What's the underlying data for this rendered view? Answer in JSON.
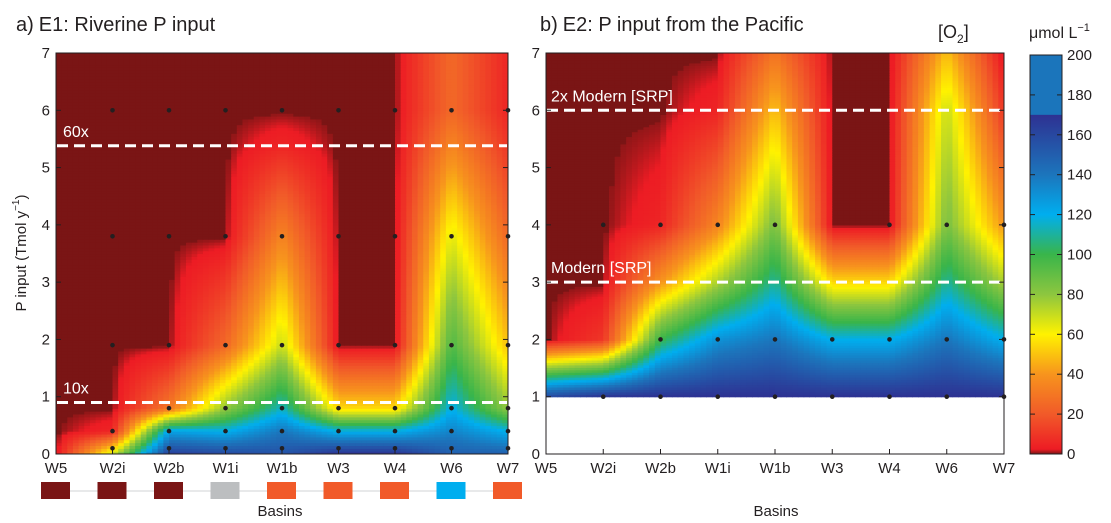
{
  "chart_data": [
    {
      "type": "heatmap",
      "panel": "a)",
      "title": "E1: Riverine P input",
      "ylabel_main": "P input (Tmol y",
      "ylabel_sup": "−1",
      "ylabel_close": ")",
      "xlabel": "Basins",
      "ylim": [
        0,
        7
      ],
      "yticks": [
        "0",
        "1",
        "2",
        "3",
        "4",
        "5",
        "6",
        "7"
      ],
      "categories": [
        "W5",
        "W2i",
        "W2b",
        "W1i",
        "W1b",
        "W3",
        "W4",
        "W6",
        "W7"
      ],
      "oxygen_by_p_input": {
        "p_levels": [
          0,
          0.4,
          0.8,
          1.9,
          3.8,
          5.4,
          6.0
        ],
        "W5": [
          0,
          0,
          0,
          0,
          0,
          0,
          0
        ],
        "W2i": [
          70,
          5,
          0,
          0,
          0,
          0,
          0
        ],
        "W2b": [
          165,
          125,
          30,
          0,
          0,
          0,
          0
        ],
        "W1i": [
          160,
          120,
          80,
          25,
          0,
          0,
          0
        ],
        "W1b": [
          155,
          140,
          115,
          70,
          35,
          5,
          0
        ],
        "W3": [
          170,
          120,
          55,
          0,
          0,
          0,
          0
        ],
        "W4": [
          170,
          120,
          55,
          0,
          0,
          0,
          0
        ],
        "W6": [
          150,
          135,
          120,
          95,
          65,
          35,
          25
        ],
        "W7": [
          150,
          120,
          80,
          50,
          25,
          10,
          5
        ]
      },
      "sample_points_p": {
        "W5": [],
        "W2i": [
          0.1,
          0.4,
          1.9,
          3.8,
          6.0
        ],
        "W2b": [
          0.1,
          0.4,
          0.8,
          1.9,
          3.8,
          6.0
        ],
        "W1i": [
          0.1,
          0.4,
          0.8,
          1.9,
          3.8,
          6.0
        ],
        "W1b": [
          0.1,
          0.4,
          0.8,
          1.9,
          3.8,
          6.0
        ],
        "W3": [
          0.1,
          0.4,
          0.8,
          1.9,
          3.8,
          6.0
        ],
        "W4": [
          0.1,
          0.4,
          0.8,
          1.9,
          3.8,
          6.0
        ],
        "W6": [
          0.1,
          0.4,
          0.8,
          1.9,
          3.8,
          6.0
        ],
        "W7": [
          0.1,
          0.4,
          0.8,
          1.9,
          3.8,
          6.0
        ]
      },
      "reference_lines": [
        {
          "label": "60x",
          "p": 5.38
        },
        {
          "label": "10x",
          "p": 0.9
        }
      ],
      "basin_colors": [
        "#7a1515",
        "#7a1515",
        "#7a1515",
        "#bcbec0",
        "#f15a29",
        "#f15a29",
        "#f15a29",
        "#00aeef",
        "#f15a29"
      ]
    },
    {
      "type": "heatmap",
      "panel": "b)",
      "title": "E2:  P input from the Pacific",
      "xlabel": "Basins",
      "ylim": [
        0,
        7
      ],
      "yticks": [
        "0",
        "1",
        "2",
        "3",
        "4",
        "5",
        "6",
        "7"
      ],
      "categories": [
        "W5",
        "W2i",
        "W2b",
        "W1i",
        "W1b",
        "W3",
        "W4",
        "W6",
        "W7"
      ],
      "data_floor_p": 1,
      "oxygen_by_p_input": {
        "p_levels": [
          1,
          2,
          3,
          4,
          6,
          7
        ],
        "W5": [
          160,
          0,
          0,
          0,
          0,
          0
        ],
        "W2i": [
          170,
          10,
          0,
          0,
          0,
          0
        ],
        "W2b": [
          170,
          100,
          40,
          5,
          0,
          0
        ],
        "W1i": [
          170,
          130,
          75,
          35,
          5,
          0
        ],
        "W1b": [
          170,
          140,
          110,
          85,
          50,
          30
        ],
        "W3": [
          170,
          120,
          55,
          0,
          0,
          0
        ],
        "W4": [
          170,
          120,
          55,
          0,
          0,
          0
        ],
        "W6": [
          170,
          140,
          110,
          85,
          70,
          50
        ],
        "W7": [
          170,
          120,
          75,
          40,
          10,
          0
        ]
      },
      "sample_points_p": {
        "W5": [],
        "W2i": [
          1,
          4
        ],
        "W2b": [
          1,
          2,
          4
        ],
        "W1i": [
          1,
          2,
          4
        ],
        "W1b": [
          1,
          2,
          4
        ],
        "W3": [
          1,
          2
        ],
        "W4": [
          1,
          2,
          4
        ],
        "W6": [
          1,
          2,
          4
        ],
        "W7": [
          1,
          2,
          4
        ]
      },
      "reference_lines": [
        {
          "label": "2x Modern [SRP]",
          "p": 6.0
        },
        {
          "label": "Modern [SRP]",
          "p": 3.0
        }
      ]
    }
  ],
  "colorbar": {
    "label_main": "[O",
    "label_sub": "2",
    "label_close": "]",
    "unit_main": "μmol L",
    "unit_sup": "−1",
    "range": [
      0,
      200
    ],
    "ticks": [
      "0",
      "20",
      "40",
      "60",
      "80",
      "100",
      "120",
      "140",
      "160",
      "180",
      "200"
    ],
    "upper_band_from": 170,
    "upper_band_color": "#1b75bb"
  }
}
